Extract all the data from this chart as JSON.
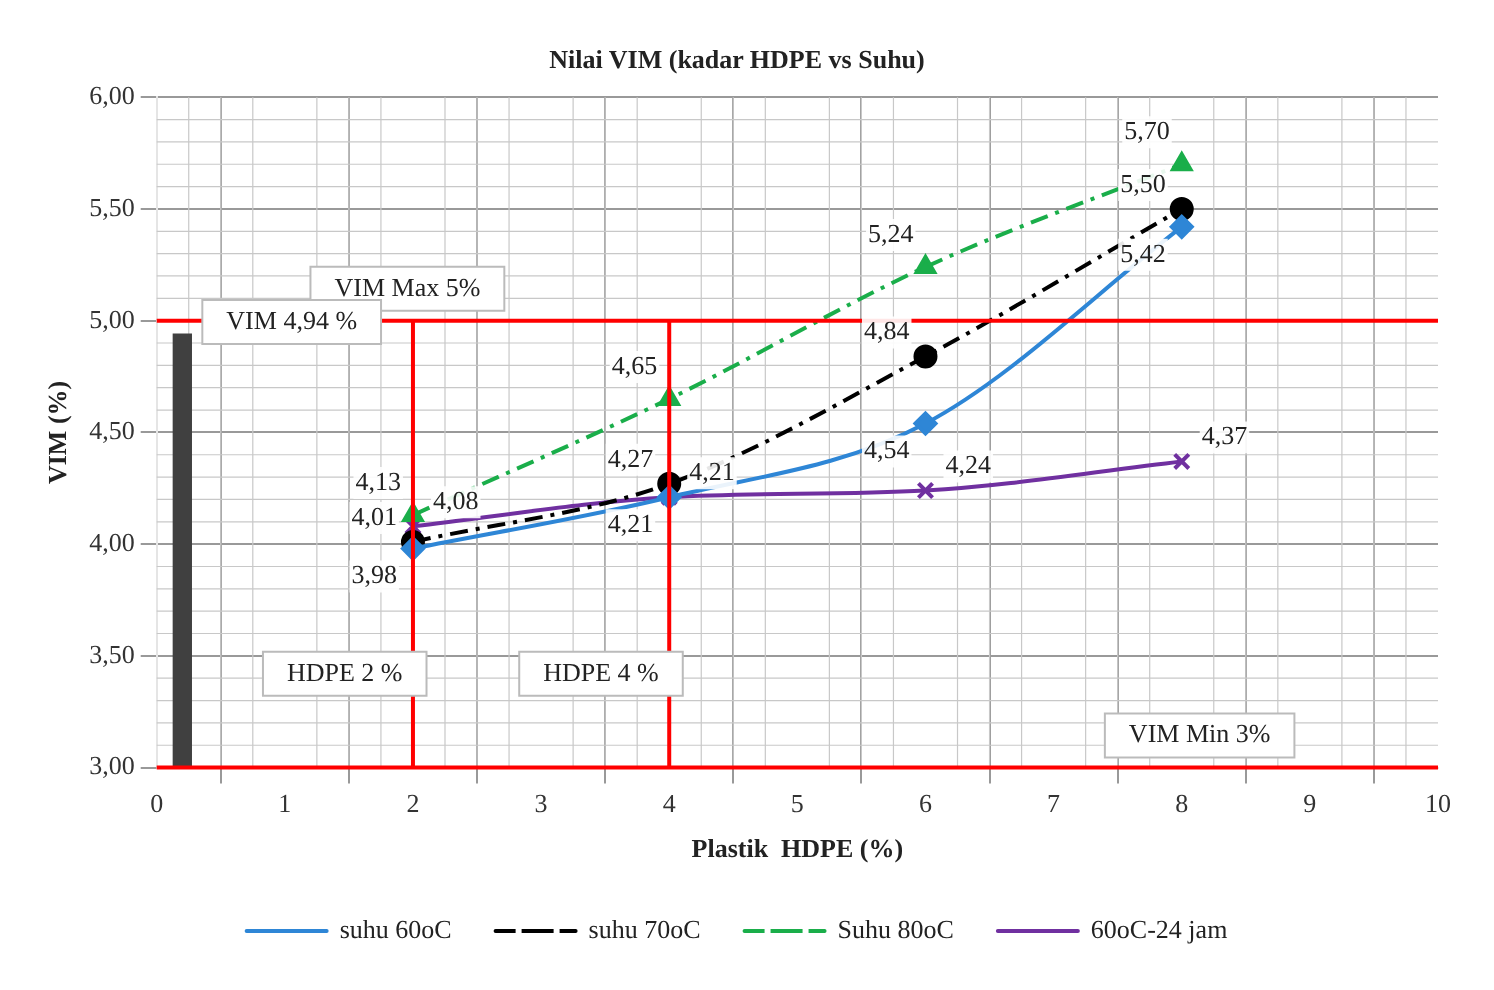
{
  "chart_data": {
    "type": "line",
    "title": "Nilai VIM (kadar HDPE vs Suhu)",
    "xlabel": "Plastik  HDPE (%)",
    "ylabel": "VIM (%)",
    "xlim": [
      0,
      10
    ],
    "xticks": [
      0,
      1,
      2,
      3,
      4,
      5,
      6,
      7,
      8,
      9,
      10
    ],
    "ylim": [
      3,
      6
    ],
    "yticks": [
      {
        "value": 3,
        "label": "3,00"
      },
      {
        "value": 3.5,
        "label": "3,50"
      },
      {
        "value": 4,
        "label": "4,00"
      },
      {
        "value": 4.5,
        "label": "4,50"
      },
      {
        "value": 5,
        "label": "5,00"
      },
      {
        "value": 5.5,
        "label": "5,50"
      },
      {
        "value": 6,
        "label": "6,00"
      }
    ],
    "grid": true,
    "legend": "bottom",
    "series": [
      {
        "name": "suhu 60oC",
        "color": "#2e86d6",
        "x": [
          2,
          4,
          6,
          8
        ],
        "values": [
          3.98,
          4.21,
          4.54,
          5.42
        ],
        "value_labels": [
          "3,98",
          "4,21",
          "4,54",
          "5,42"
        ],
        "marker": "diamond",
        "line_style": "solid"
      },
      {
        "name": "suhu 70oC",
        "color": "#000000",
        "x": [
          2,
          4,
          6,
          8
        ],
        "values": [
          4.01,
          4.27,
          4.84,
          5.5
        ],
        "value_labels": [
          "4,01",
          "4,27",
          "4,84",
          "5,50"
        ],
        "marker": "circle",
        "line_style": "dashed"
      },
      {
        "name": "Suhu 80oC",
        "color": "#1aae4a",
        "x": [
          2,
          4,
          6,
          8
        ],
        "values": [
          4.13,
          4.65,
          5.24,
          5.7
        ],
        "value_labels": [
          "4,13",
          "4,65",
          "5,24",
          "5,70"
        ],
        "marker": "triangle",
        "line_style": "dashed"
      },
      {
        "name": "60oC-24 jam",
        "color": "#7030a0",
        "x": [
          2,
          4,
          6,
          8
        ],
        "values": [
          4.08,
          4.21,
          4.24,
          4.37
        ],
        "value_labels": [
          "4,08",
          "4,21",
          "4,24",
          "4,37"
        ],
        "marker": "cross",
        "line_style": "solid"
      },
      {
        "type": "bar",
        "color": "#404040",
        "x": [
          0.2
        ],
        "values": [
          4.94
        ]
      }
    ],
    "ref_lines": [
      {
        "axis": "y",
        "value": 5,
        "label": "VIM Max 5%",
        "color": "#ff0000"
      },
      {
        "axis": "y",
        "value": 3,
        "label": "VIM Min 3%",
        "color": "#ff0000"
      },
      {
        "axis": "x",
        "value": 2,
        "label": "HDPE 2 %",
        "color": "#ff0000"
      },
      {
        "axis": "x",
        "value": 4,
        "label": "HDPE 4 %",
        "color": "#ff0000"
      }
    ],
    "annotations": [
      {
        "text": "VIM 4,94 %",
        "x": 0.2,
        "y": 4.94
      }
    ]
  }
}
